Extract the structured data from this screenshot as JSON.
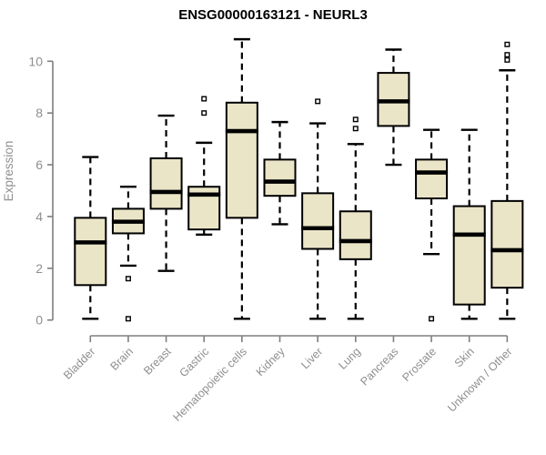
{
  "chart_data": {
    "type": "boxplot",
    "title": "ENSG00000163121 - NEURL3",
    "xlabel": "",
    "ylabel": "Expression",
    "ylim": [
      0,
      10.9
    ],
    "yticks": [
      0,
      2,
      4,
      6,
      8,
      10
    ],
    "grid": false,
    "legend": "none",
    "colors": {
      "box_fill": "#EBE5C8",
      "box_stroke": "#000000",
      "median": "#000000",
      "whisker": "#000000",
      "axis_line": "#7F7F7F",
      "axis_text": "#8F8F8F",
      "title_text": "#000000",
      "background": "#FFFFFF"
    },
    "categories": [
      "Bladder",
      "Brain",
      "Breast",
      "Gastric",
      "Hematopoietic cells",
      "Kidney",
      "Liver",
      "Lung",
      "Pancreas",
      "Prostate",
      "Skin",
      "Unknown / Other"
    ],
    "series": [
      {
        "name": "Bladder",
        "whisker_low": 0.05,
        "q1": 1.35,
        "median": 3.0,
        "q3": 3.95,
        "whisker_high": 6.3,
        "outliers": []
      },
      {
        "name": "Brain",
        "whisker_low": 2.1,
        "q1": 3.35,
        "median": 3.8,
        "q3": 4.3,
        "whisker_high": 5.15,
        "outliers": [
          1.6,
          0.05
        ]
      },
      {
        "name": "Breast",
        "whisker_low": 1.9,
        "q1": 4.3,
        "median": 4.95,
        "q3": 6.25,
        "whisker_high": 7.9,
        "outliers": []
      },
      {
        "name": "Gastric",
        "whisker_low": 3.3,
        "q1": 3.5,
        "median": 4.85,
        "q3": 5.15,
        "whisker_high": 6.85,
        "outliers": [
          8.55,
          8.0
        ]
      },
      {
        "name": "Hematopoietic cells",
        "whisker_low": 0.05,
        "q1": 3.95,
        "median": 7.3,
        "q3": 8.4,
        "whisker_high": 10.85,
        "outliers": []
      },
      {
        "name": "Kidney",
        "whisker_low": 3.7,
        "q1": 4.8,
        "median": 5.35,
        "q3": 6.2,
        "whisker_high": 7.65,
        "outliers": []
      },
      {
        "name": "Liver",
        "whisker_low": 0.05,
        "q1": 2.75,
        "median": 3.55,
        "q3": 4.9,
        "whisker_high": 7.6,
        "outliers": [
          8.45
        ]
      },
      {
        "name": "Lung",
        "whisker_low": 0.05,
        "q1": 2.35,
        "median": 3.05,
        "q3": 4.2,
        "whisker_high": 6.8,
        "outliers": [
          7.75,
          7.4
        ]
      },
      {
        "name": "Pancreas",
        "whisker_low": 6.0,
        "q1": 7.5,
        "median": 8.45,
        "q3": 9.55,
        "whisker_high": 10.45,
        "outliers": []
      },
      {
        "name": "Prostate",
        "whisker_low": 2.55,
        "q1": 4.7,
        "median": 5.7,
        "q3": 6.2,
        "whisker_high": 7.35,
        "outliers": [
          0.05
        ]
      },
      {
        "name": "Skin",
        "whisker_low": 0.05,
        "q1": 0.6,
        "median": 3.3,
        "q3": 4.4,
        "whisker_high": 7.35,
        "outliers": []
      },
      {
        "name": "Unknown / Other",
        "whisker_low": 0.05,
        "q1": 1.25,
        "median": 2.7,
        "q3": 4.6,
        "whisker_high": 9.65,
        "outliers": [
          10.65,
          10.25,
          10.05
        ]
      }
    ]
  }
}
